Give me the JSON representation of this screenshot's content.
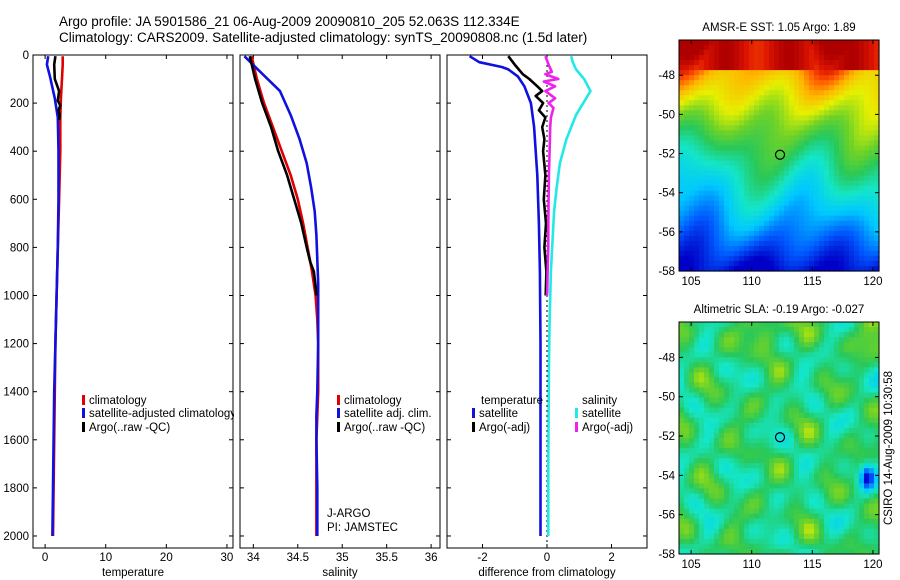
{
  "header": {
    "line1": "Argo profile: JA 5901586_21 06-Aug-2009 20090810_205 52.063S 112.334E",
    "line2": "Climatology: CARS2009. Satellite-adjusted climatology: synTS_20090808.nc (1.5d later)"
  },
  "credit": "CSIRO 14-Aug-2009 10:30:58",
  "colors": {
    "red": "#e00000",
    "blue": "#1010e0",
    "black": "#000000",
    "cyan": "#22e8e8",
    "magenta": "#ee22ee"
  },
  "chart_data": [
    {
      "type": "line",
      "id": "temperature",
      "xlabel": "temperature",
      "ylabel": "",
      "xlim": [
        -2,
        31
      ],
      "ylim": [
        2050,
        0
      ],
      "xticks": [
        0,
        10,
        20,
        30
      ],
      "xtick_labels": [
        "0",
        "10",
        "20",
        "30"
      ],
      "yticks": [
        0,
        200,
        400,
        600,
        800,
        1000,
        1200,
        1400,
        1600,
        1800,
        2000
      ],
      "ytick_labels": [
        "0",
        "200",
        "400",
        "600",
        "800",
        "1000",
        "1200",
        "1400",
        "1600",
        "1800",
        "2000"
      ],
      "legend": [
        "climatology",
        "satellite-adjusted climatology",
        "Argo(..raw -QC)"
      ],
      "series": [
        {
          "name": "climatology",
          "color": "red",
          "x": [
            2.9,
            2.9,
            2.8,
            2.6,
            2.5,
            2.5,
            2.3,
            2.1,
            1.9,
            1.7,
            1.6,
            1.5,
            1.4,
            1.3
          ],
          "y": [
            5,
            40,
            90,
            180,
            260,
            400,
            600,
            800,
            1000,
            1200,
            1400,
            1600,
            1800,
            2000
          ]
        },
        {
          "name": "satellite-adjusted climatology",
          "color": "blue",
          "x": [
            0.5,
            0.3,
            0.8,
            1.6,
            2.1,
            2.2,
            2.2,
            2.1,
            1.9,
            1.7,
            1.5,
            1.4,
            1.3,
            1.2
          ],
          "y": [
            5,
            40,
            90,
            180,
            260,
            400,
            600,
            800,
            1000,
            1200,
            1400,
            1600,
            1800,
            2000
          ]
        },
        {
          "name": "Argo(..raw -QC)",
          "color": "black",
          "x": [
            1.7,
            1.5,
            1.6,
            2.3,
            2.1,
            2.5,
            2.2,
            2.4,
            2.3
          ],
          "y": [
            5,
            40,
            100,
            150,
            190,
            210,
            230,
            250,
            270
          ]
        }
      ]
    },
    {
      "type": "line",
      "id": "salinity",
      "xlabel": "salinity",
      "ylabel": "",
      "xlim": [
        33.85,
        36.1
      ],
      "ylim": [
        2050,
        0
      ],
      "xticks": [
        34,
        34.5,
        35,
        35.5,
        36
      ],
      "xtick_labels": [
        "34",
        "34.5",
        "35",
        "35.5",
        "36"
      ],
      "legend": [
        "climatology",
        "satellite adj. clim.",
        "Argo(..raw -QC)"
      ],
      "annotations": [
        "J-ARGO",
        "PI: JAMSTEC"
      ],
      "series": [
        {
          "name": "climatology",
          "color": "red",
          "x": [
            33.98,
            34.04,
            34.12,
            34.22,
            34.32,
            34.42,
            34.5,
            34.56,
            34.61,
            34.66,
            34.7,
            34.72,
            34.73,
            34.73,
            34.72,
            34.71,
            34.71,
            34.71,
            34.71
          ],
          "y": [
            5,
            100,
            200,
            300,
            400,
            500,
            600,
            700,
            800,
            900,
            1000,
            1100,
            1200,
            1400,
            1500,
            1600,
            1800,
            1900,
            2000
          ]
        },
        {
          "name": "satellite adj. clim.",
          "color": "blue",
          "x": [
            33.9,
            34.05,
            34.3,
            34.42,
            34.52,
            34.6,
            34.65,
            34.69,
            34.71,
            34.72,
            34.73,
            34.73,
            34.73,
            34.72,
            34.71,
            34.71,
            34.72,
            34.72,
            34.72
          ],
          "y": [
            5,
            60,
            150,
            250,
            350,
            450,
            550,
            650,
            750,
            850,
            950,
            1100,
            1200,
            1400,
            1500,
            1600,
            1800,
            1900,
            2000
          ]
        },
        {
          "name": "Argo(..raw -QC)",
          "color": "black",
          "x": [
            33.96,
            34.02,
            34.1,
            34.2,
            34.28,
            34.38,
            34.46,
            34.54,
            34.6,
            34.64,
            34.68,
            34.7,
            34.71
          ],
          "y": [
            5,
            100,
            200,
            300,
            400,
            500,
            600,
            700,
            800,
            860,
            900,
            960,
            1000
          ]
        }
      ]
    },
    {
      "type": "line",
      "id": "difference",
      "xlabel": "difference from climatology",
      "ylabel": "",
      "xlim": [
        -3.1,
        3.1
      ],
      "ylim": [
        2050,
        0
      ],
      "xticks": [
        -2,
        0,
        2
      ],
      "xtick_labels": [
        "-2",
        "0",
        "2"
      ],
      "legend_headers": [
        "temperature",
        "salinity"
      ],
      "legend": [
        "satellite",
        "Argo(-adj)",
        "satellite",
        "Argo(-adj)"
      ],
      "series": [
        {
          "name": "temperature satellite",
          "color": "blue",
          "x": [
            -2.4,
            -2.1,
            -1.4,
            -1.2,
            -0.9,
            -0.7,
            -0.5,
            -0.4,
            -0.3,
            -0.25,
            -0.22,
            -0.2,
            -0.2,
            -0.2,
            -0.2
          ],
          "y": [
            5,
            30,
            50,
            60,
            90,
            130,
            200,
            300,
            500,
            700,
            900,
            1200,
            1500,
            1800,
            2000
          ]
        },
        {
          "name": "temperature Argo(-adj)",
          "color": "black",
          "x": [
            -1.2,
            -1.0,
            -0.75,
            -0.55,
            -0.3,
            -0.15,
            -0.35,
            -0.12,
            -0.25,
            -0.05,
            -0.15,
            -0.08,
            -0.12,
            -0.05,
            -0.1,
            -0.03,
            -0.08,
            -0.02,
            -0.04
          ],
          "y": [
            5,
            40,
            80,
            100,
            130,
            150,
            170,
            200,
            230,
            260,
            300,
            350,
            400,
            500,
            600,
            700,
            800,
            900,
            1000
          ]
        },
        {
          "name": "salinity satellite",
          "color": "cyan",
          "x": [
            0.75,
            0.8,
            0.9,
            1.15,
            1.35,
            0.9,
            0.6,
            0.4,
            0.3,
            0.22,
            0.18,
            0.12,
            0.08,
            0.06,
            0.05,
            0.04,
            0.04,
            0.04,
            0.04
          ],
          "y": [
            5,
            30,
            60,
            100,
            150,
            250,
            350,
            450,
            550,
            650,
            750,
            900,
            1100,
            1300,
            1500,
            1700,
            1800,
            1900,
            2000
          ]
        },
        {
          "name": "salinity Argo(-adj)",
          "color": "magenta",
          "x": [
            -0.05,
            0.05,
            0.15,
            -0.05,
            0.35,
            -0.1,
            0.25,
            -0.05,
            0.25,
            0.05,
            0.2,
            0.12,
            0.1,
            0.08,
            0.06,
            0.05,
            0.04,
            0.04,
            0.02,
            0.01,
            0.0
          ],
          "y": [
            5,
            40,
            70,
            80,
            100,
            110,
            130,
            150,
            180,
            200,
            220,
            260,
            300,
            400,
            500,
            600,
            700,
            800,
            900,
            980,
            1000
          ]
        }
      ]
    },
    {
      "type": "heatmap",
      "id": "sst_map",
      "title": "AMSR-E SST: 1.05 Argo: 1.89",
      "xlim": [
        104,
        120.5
      ],
      "ylim": [
        -58,
        -46.2
      ],
      "xticks": [
        105,
        110,
        115,
        120
      ],
      "xtick_labels": [
        "105",
        "110",
        "115",
        "120"
      ],
      "yticks": [
        -48,
        -50,
        -52,
        -54,
        -56,
        -58
      ],
      "ytick_labels": [
        "-48",
        "-50",
        "-52",
        "-54",
        "-56",
        "-58"
      ],
      "marker": {
        "lon": 112.334,
        "lat": -52.063
      }
    },
    {
      "type": "heatmap",
      "id": "sla_map",
      "title": "Altimetric SLA: -0.19 Argo: -0.027",
      "xlim": [
        104,
        120.5
      ],
      "ylim": [
        -58,
        -46.2
      ],
      "xticks": [
        105,
        110,
        115,
        120
      ],
      "xtick_labels": [
        "105",
        "110",
        "115",
        "120"
      ],
      "yticks": [
        -48,
        -50,
        -52,
        -54,
        -56,
        -58
      ],
      "ytick_labels": [
        "-48",
        "-50",
        "-52",
        "-54",
        "-56",
        "-58"
      ],
      "marker": {
        "lon": 112.334,
        "lat": -52.063
      }
    }
  ]
}
